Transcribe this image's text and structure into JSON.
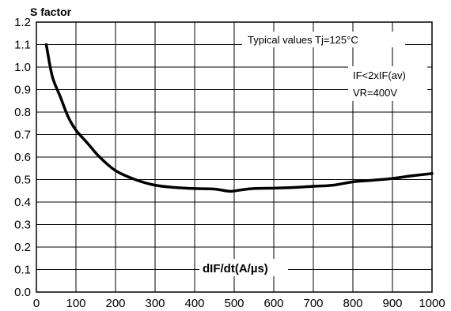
{
  "chart_data": {
    "type": "line",
    "ylabel": "S factor",
    "xlabel": "dIF/dt(A/µs)",
    "xlim": [
      0,
      1000
    ],
    "ylim": [
      0.0,
      1.2
    ],
    "x_ticks": [
      0,
      100,
      200,
      300,
      400,
      500,
      600,
      700,
      800,
      900,
      1000
    ],
    "y_ticks": [
      "0.0",
      "0.1",
      "0.2",
      "0.3",
      "0.4",
      "0.5",
      "0.6",
      "0.7",
      "0.8",
      "0.9",
      "1.0",
      "1.1",
      "1.2"
    ],
    "grid": true,
    "annotations": [
      "Typical values Tj=125°C",
      "IF<2xIF(av)",
      "VR=400V"
    ],
    "series": [
      {
        "x": [
          25,
          40,
          60,
          80,
          100,
          130,
          160,
          200,
          250,
          300,
          350,
          400,
          450,
          490,
          520,
          550,
          600,
          650,
          700,
          750,
          800,
          850,
          900,
          950,
          1000
        ],
        "y": [
          1.1,
          0.96,
          0.87,
          0.78,
          0.72,
          0.66,
          0.6,
          0.54,
          0.5,
          0.475,
          0.465,
          0.46,
          0.458,
          0.448,
          0.455,
          0.46,
          0.462,
          0.465,
          0.47,
          0.475,
          0.49,
          0.497,
          0.505,
          0.517,
          0.527
        ]
      }
    ]
  }
}
